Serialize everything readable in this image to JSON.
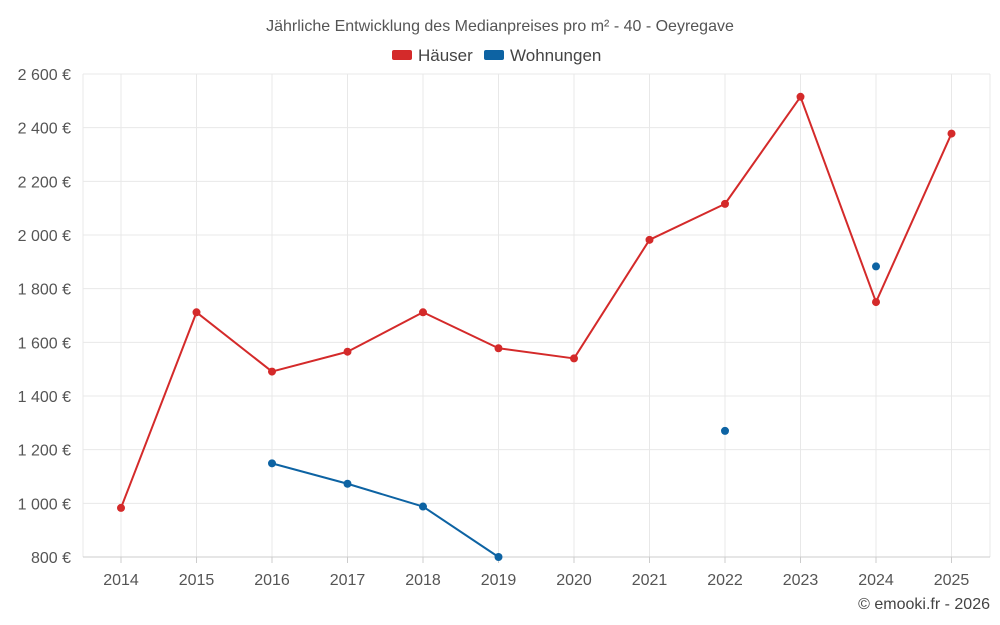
{
  "chart_data": {
    "type": "line",
    "title": "Jährliche Entwicklung des Medianpreises pro m² - 40 - Oeyregave",
    "x": [
      2014,
      2015,
      2016,
      2017,
      2018,
      2019,
      2020,
      2021,
      2022,
      2023,
      2024,
      2025
    ],
    "x_tick_labels": [
      "2014",
      "2015",
      "2016",
      "2017",
      "2018",
      "2019",
      "2020",
      "2021",
      "2022",
      "2023",
      "2024",
      "2025"
    ],
    "ylim": [
      800,
      2600
    ],
    "y_ticks": [
      800,
      1000,
      1200,
      1400,
      1600,
      1800,
      2000,
      2200,
      2400,
      2600
    ],
    "y_tick_labels": [
      "800 €",
      "1 000 €",
      "1 200 €",
      "1 400 €",
      "1 600 €",
      "1 800 €",
      "2 000 €",
      "2 200 €",
      "2 400 €",
      "2 600 €"
    ],
    "xlabel": "",
    "ylabel": "",
    "grid": true,
    "legend_position": "top-center",
    "series": [
      {
        "name": "Häuser",
        "color": "#d42a2a",
        "values": [
          983,
          1712,
          1491,
          1565,
          1712,
          1578,
          1540,
          1982,
          2116,
          2515,
          1750,
          2378
        ]
      },
      {
        "name": "Wohnungen",
        "color": "#0d63a3",
        "values": [
          null,
          null,
          1149,
          1073,
          988,
          800,
          null,
          null,
          1270,
          null,
          1883,
          null
        ]
      }
    ]
  },
  "credit": "© emooki.fr - 2026"
}
